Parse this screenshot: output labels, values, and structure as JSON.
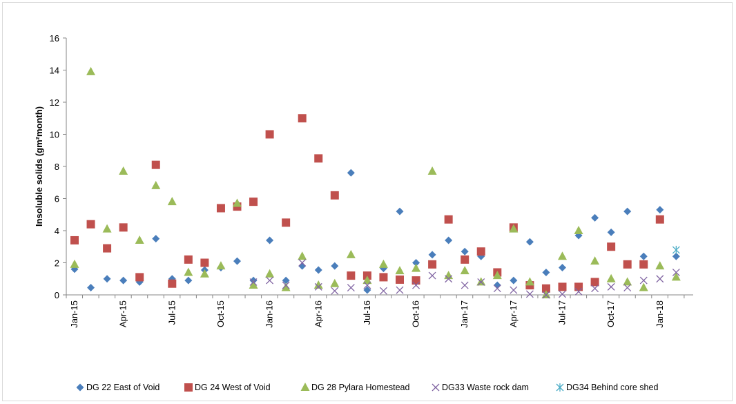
{
  "chart_data": {
    "type": "scatter",
    "title": "",
    "xlabel": "",
    "ylabel": "Insoluble solids (gm²month)",
    "ylim": [
      0,
      16
    ],
    "y_ticks": [
      "0",
      "2",
      "4",
      "6",
      "8",
      "10",
      "12",
      "14",
      "16"
    ],
    "x_tick_labels": [
      "Jan-15",
      "Apr-15",
      "Jul-15",
      "Oct-15",
      "Jan-16",
      "Apr-16",
      "Jul-16",
      "Oct-16",
      "Jan-17",
      "Apr-17",
      "Jul-17",
      "Oct-17",
      "Jan-18"
    ],
    "x_months": [
      "Jan-15",
      "Feb-15",
      "Mar-15",
      "Apr-15",
      "May-15",
      "Jun-15",
      "Jul-15",
      "Aug-15",
      "Sep-15",
      "Oct-15",
      "Nov-15",
      "Dec-15",
      "Jan-16",
      "Feb-16",
      "Mar-16",
      "Apr-16",
      "May-16",
      "Jun-16",
      "Jul-16",
      "Aug-16",
      "Sep-16",
      "Oct-16",
      "Nov-16",
      "Dec-16",
      "Jan-17",
      "Feb-17",
      "Mar-17",
      "Apr-17",
      "May-17",
      "Jun-17",
      "Jul-17",
      "Aug-17",
      "Sep-17",
      "Oct-17",
      "Nov-17",
      "Dec-17",
      "Jan-18",
      "Feb-18"
    ],
    "grid": false,
    "legend_position": "bottom",
    "series": [
      {
        "name": "DG 22 East of Void",
        "marker": "diamond",
        "color": "#4a7ebb",
        "values": [
          1.6,
          0.45,
          1.0,
          0.9,
          0.8,
          3.5,
          1.0,
          0.9,
          1.55,
          1.7,
          2.1,
          0.9,
          3.4,
          0.9,
          1.8,
          1.55,
          1.8,
          7.6,
          0.3,
          1.65,
          5.2,
          2.0,
          2.5,
          3.4,
          2.7,
          2.4,
          0.6,
          0.9,
          3.3,
          1.4,
          1.7,
          3.7,
          4.8,
          3.9,
          5.2,
          2.4,
          5.3,
          2.4
        ]
      },
      {
        "name": "DG 24 West of Void",
        "marker": "square",
        "color": "#c0504d",
        "values": [
          3.4,
          4.4,
          2.9,
          4.2,
          1.1,
          8.1,
          0.7,
          2.2,
          2.0,
          5.4,
          5.5,
          5.8,
          10.0,
          4.5,
          11.0,
          8.5,
          6.2,
          1.2,
          1.2,
          1.1,
          0.95,
          0.9,
          1.9,
          4.7,
          2.2,
          2.7,
          1.4,
          4.2,
          0.6,
          0.4,
          0.5,
          0.5,
          0.8,
          3.0,
          1.9,
          1.9,
          4.7,
          null
        ]
      },
      {
        "name": "DG 28 Pylara Homestead",
        "marker": "triangle",
        "color": "#9bbb59",
        "values": [
          1.9,
          13.9,
          4.1,
          7.7,
          3.4,
          6.8,
          5.8,
          1.4,
          1.3,
          1.8,
          5.7,
          0.6,
          1.3,
          0.45,
          2.4,
          0.6,
          0.7,
          2.5,
          0.9,
          1.9,
          1.5,
          1.65,
          7.7,
          1.2,
          1.5,
          0.8,
          1.2,
          4.1,
          0.8,
          0.0,
          2.4,
          4.0,
          2.1,
          1.0,
          0.8,
          0.45,
          1.8,
          1.1
        ]
      },
      {
        "name": "DG33 Waste rock dam",
        "marker": "x",
        "color": "#8064a2",
        "values": [
          null,
          null,
          null,
          null,
          null,
          null,
          null,
          null,
          null,
          null,
          null,
          0.8,
          0.9,
          0.6,
          2.0,
          0.5,
          0.25,
          0.45,
          0.6,
          0.25,
          0.3,
          0.6,
          1.2,
          1.0,
          0.6,
          0.8,
          0.4,
          0.3,
          0.05,
          0.0,
          0.05,
          0.2,
          0.4,
          0.5,
          0.45,
          0.9,
          1.0,
          1.4
        ]
      },
      {
        "name": "DG34 Behind core shed",
        "marker": "asterisk",
        "color": "#4bacc6",
        "values": [
          null,
          null,
          null,
          null,
          null,
          null,
          null,
          null,
          null,
          null,
          null,
          null,
          null,
          null,
          null,
          null,
          null,
          null,
          null,
          null,
          null,
          null,
          null,
          null,
          null,
          null,
          null,
          null,
          null,
          null,
          null,
          null,
          null,
          null,
          null,
          null,
          null,
          2.8
        ]
      }
    ]
  }
}
